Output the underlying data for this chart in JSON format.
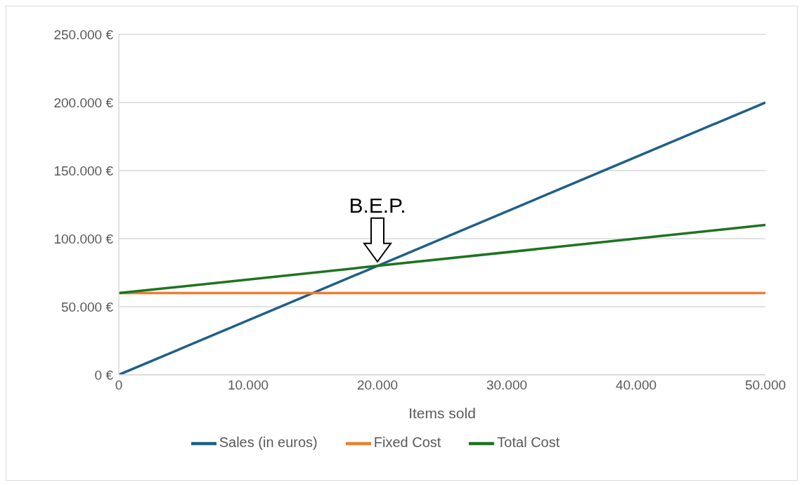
{
  "chart_data": {
    "type": "line",
    "xlabel": "Items sold",
    "x": [
      0,
      50000
    ],
    "series": [
      {
        "name": "Sales (in euros)",
        "color": "#1f5f86",
        "values": [
          0,
          200000
        ]
      },
      {
        "name": "Fixed Cost",
        "color": "#ee7d31",
        "values": [
          60000,
          60000
        ]
      },
      {
        "name": "Total Cost",
        "color": "#1e7321",
        "values": [
          60000,
          110000
        ]
      }
    ],
    "xlim": [
      0,
      50000
    ],
    "xticks": [
      0,
      {
        "value": 10000,
        "label": "10.000"
      },
      {
        "value": 20000,
        "label": "20.000"
      },
      {
        "value": 30000,
        "label": "30.000"
      },
      {
        "value": 40000,
        "label": "40.000"
      },
      {
        "value": 50000,
        "label": "50.000"
      }
    ],
    "ylim": [
      0,
      250000
    ],
    "yticks": [
      {
        "value": 0,
        "label": "0 €"
      },
      {
        "value": 50000,
        "label": "50.000 €"
      },
      {
        "value": 100000,
        "label": "100.000 €"
      },
      {
        "value": 150000,
        "label": "150.000 €"
      },
      {
        "value": 200000,
        "label": "200.000 €"
      },
      {
        "value": 250000,
        "label": "250.000 €"
      }
    ],
    "annotations": [
      {
        "text": "B.E.P.",
        "x": 20000,
        "y": 80000
      }
    ],
    "grid": "y",
    "legend": "bottom",
    "marker": "none",
    "line_style": "solid"
  }
}
